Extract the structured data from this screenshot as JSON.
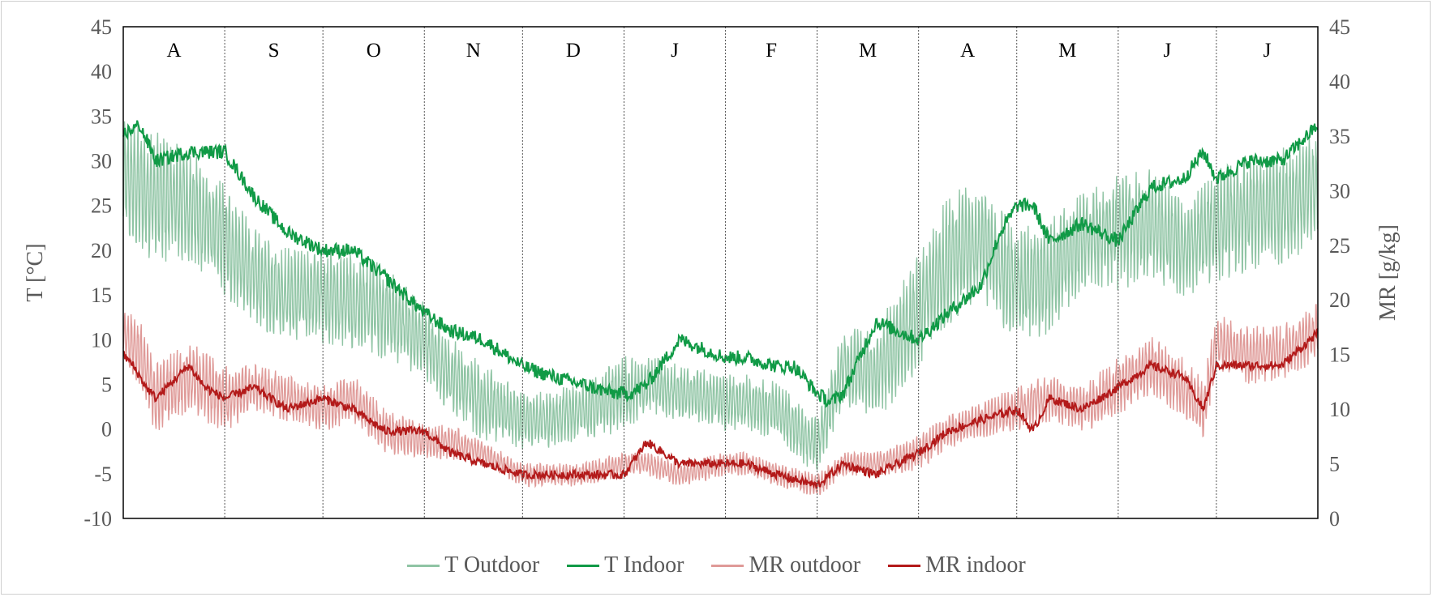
{
  "chart_data": {
    "type": "line",
    "title": "",
    "ylabel": "T [°C]",
    "y2label": "MR [g/kg]",
    "ylim": [
      -10,
      45
    ],
    "y2lim": [
      0,
      45
    ],
    "yticks": [
      -10,
      -5,
      0,
      5,
      10,
      15,
      20,
      25,
      30,
      35,
      40,
      45
    ],
    "y2ticks": [
      0,
      5,
      10,
      15,
      20,
      25,
      30,
      35,
      40,
      45
    ],
    "months": [
      "A",
      "S",
      "O",
      "N",
      "D",
      "J",
      "F",
      "M",
      "A",
      "M",
      "J",
      "J"
    ],
    "x_note_days": [
      31,
      30,
      31,
      30,
      31,
      31,
      28,
      31,
      30,
      31,
      30,
      31
    ],
    "grid": false,
    "legend_position": "bottom",
    "series": [
      {
        "name": "T Outdoor",
        "axis": "left",
        "color": "#8fc4a4",
        "days": [
          0,
          10,
          20,
          31,
          40,
          50,
          61,
          70,
          80,
          92,
          100,
          110,
          122,
          130,
          140,
          153,
          160,
          170,
          184,
          190,
          200,
          212,
          220,
          230,
          243,
          252,
          262,
          273,
          283,
          293,
          304,
          314,
          324,
          334,
          344,
          354,
          365
        ],
        "mean": [
          28,
          26,
          25,
          21,
          17,
          15,
          15,
          14,
          13,
          10,
          6,
          3,
          1,
          1,
          2,
          4,
          5,
          4,
          3,
          3,
          2,
          -2,
          7,
          6,
          13,
          19,
          21,
          16,
          17,
          21,
          22,
          23,
          20,
          23,
          24,
          25,
          27
        ],
        "amplitude": [
          6,
          7,
          6,
          6,
          5,
          5,
          5,
          5,
          5,
          4,
          4,
          4,
          3,
          3,
          3,
          4,
          3,
          3,
          3,
          3,
          3,
          3,
          4,
          5,
          6,
          7,
          6,
          6,
          6,
          5,
          6,
          6,
          5,
          6,
          6,
          6,
          6
        ]
      },
      {
        "name": "T Indoor",
        "axis": "left",
        "color": "#109a46",
        "days": [
          0,
          5,
          10,
          20,
          31,
          40,
          50,
          61,
          70,
          80,
          92,
          100,
          110,
          122,
          130,
          140,
          150,
          155,
          160,
          170,
          184,
          190,
          200,
          205,
          212,
          216,
          220,
          230,
          243,
          252,
          262,
          268,
          273,
          278,
          283,
          293,
          304,
          314,
          324,
          330,
          334,
          344,
          354,
          365
        ],
        "values": [
          33,
          34,
          30,
          31,
          31,
          26,
          22,
          20,
          20,
          17,
          13,
          11,
          10,
          7,
          6,
          5,
          4,
          4,
          5,
          10,
          8,
          8,
          7,
          7,
          4,
          3,
          4,
          12,
          10,
          13,
          16,
          22,
          25,
          25,
          21,
          23,
          21,
          27,
          28,
          31,
          28,
          30,
          30,
          34
        ]
      },
      {
        "name": "MR outdoor",
        "axis": "right",
        "color": "#df9a98",
        "days": [
          0,
          5,
          10,
          20,
          31,
          40,
          50,
          61,
          70,
          80,
          92,
          100,
          110,
          122,
          130,
          140,
          153,
          160,
          170,
          184,
          190,
          200,
          212,
          220,
          230,
          243,
          252,
          262,
          273,
          283,
          293,
          304,
          314,
          324,
          330,
          334,
          344,
          354,
          365
        ],
        "mean": [
          17,
          15,
          11,
          13,
          11,
          12,
          11,
          10,
          11,
          8,
          7,
          7,
          6,
          4,
          4,
          4,
          5,
          5,
          4,
          5,
          5,
          4,
          3,
          5,
          5,
          6,
          8,
          9,
          10,
          11,
          10,
          12,
          14,
          12,
          10,
          16,
          15,
          15,
          17
        ],
        "amplitude": [
          2,
          3,
          3,
          3,
          3,
          2,
          2,
          2,
          2,
          2,
          1.5,
          1.5,
          1,
          1,
          1,
          1,
          1,
          1,
          1,
          1,
          1,
          1,
          1,
          1,
          1,
          1.5,
          1.5,
          1.5,
          2,
          2,
          2,
          2.5,
          2.5,
          2.5,
          2.5,
          2.5,
          2.5,
          2.5,
          2.5
        ]
      },
      {
        "name": "MR indoor",
        "axis": "right",
        "color": "#b31a1a",
        "days": [
          0,
          3,
          7,
          10,
          20,
          25,
          31,
          40,
          50,
          61,
          70,
          80,
          92,
          100,
          110,
          122,
          130,
          140,
          153,
          160,
          170,
          184,
          190,
          200,
          212,
          220,
          230,
          243,
          252,
          262,
          273,
          278,
          283,
          293,
          304,
          314,
          324,
          330,
          334,
          344,
          354,
          365
        ],
        "values": [
          15,
          14,
          12,
          11,
          14,
          12,
          11,
          12,
          10,
          11,
          10,
          8,
          8,
          6,
          5,
          4,
          4,
          4,
          4,
          7,
          5,
          5,
          5,
          4,
          3,
          5,
          4,
          6,
          8,
          9,
          10,
          8,
          11,
          10,
          12,
          14,
          13,
          10,
          14,
          14,
          14,
          17
        ]
      }
    ]
  }
}
